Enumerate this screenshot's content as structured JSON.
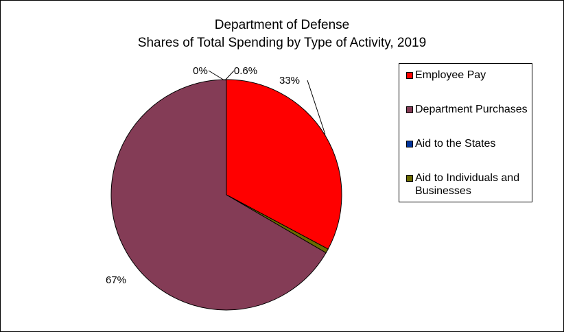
{
  "chart_data": {
    "type": "pie",
    "title": "Department of Defense",
    "subtitle": "Shares of Total Spending by Type of Activity, 2019",
    "slices": [
      {
        "name": "Employee Pay",
        "value": 33,
        "label": "33%",
        "color": "#FF0000"
      },
      {
        "name": "Aid to the States",
        "value": 0,
        "label": "0%",
        "color": "#003399"
      },
      {
        "name": "Aid to Individuals and Businesses",
        "value": 0.6,
        "label": "0.6%",
        "color": "#6B6B00"
      },
      {
        "name": "Department Purchases",
        "value": 67,
        "label": "67%",
        "color": "#843C56"
      }
    ],
    "legend": {
      "position": "right",
      "entries": [
        {
          "label": "Employee Pay",
          "color": "#FF0000"
        },
        {
          "label": "Department Purchases",
          "color": "#843C56"
        },
        {
          "label": "Aid to the States",
          "color": "#003399"
        },
        {
          "label_lines": [
            "Aid to Individuals and",
            "Businesses"
          ],
          "color": "#6B6B00"
        }
      ]
    }
  }
}
